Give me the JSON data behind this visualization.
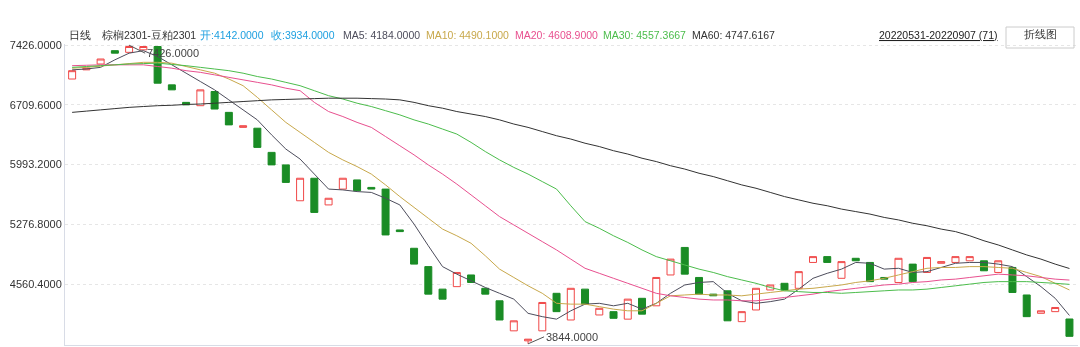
{
  "chart_data": {
    "type": "candlestick",
    "title": "日线",
    "subtitle": "棕榈2301-豆粕2301",
    "annotations": [
      "开:4142.0000",
      "收:3934.0000",
      "20220531-20220907 (71)",
      "折线图",
      "7426.0000",
      "3844.0000"
    ],
    "categories": [
      null,
      null,
      null,
      null,
      null,
      null,
      null,
      null,
      null,
      null,
      null,
      null,
      null,
      null,
      null,
      null,
      null,
      null,
      null,
      null,
      null,
      null,
      null,
      null,
      null,
      null,
      null,
      null,
      null,
      null,
      null,
      null,
      null,
      null,
      null,
      null,
      null,
      null,
      null,
      null,
      null,
      null,
      null,
      null,
      null,
      null,
      null,
      null,
      null,
      null,
      null,
      null,
      null,
      null,
      null,
      null,
      null,
      null,
      null,
      null,
      null,
      null,
      null,
      null,
      null,
      null,
      null,
      null,
      null,
      null,
      null
    ],
    "ylim": [
      3830,
      7440
    ],
    "yticks": [
      {
        "value": 4560.4,
        "label": "4560.4000"
      },
      {
        "value": 5276.8,
        "label": "5276.8000"
      },
      {
        "value": 5993.2,
        "label": "5993.2000"
      },
      {
        "value": 6709.6,
        "label": "6709.6000"
      },
      {
        "value": 7426,
        "label": "7426.0000"
      }
    ],
    "tick_labels": "y",
    "grid": "y",
    "series": [
      {
        "colors": [
          "#f04848",
          "#f04848",
          "#f04848",
          "#1a8c25",
          "#f04848",
          "#f04848",
          "#1a8c25",
          "#1a8c25",
          "#1a8c25",
          "#f04848",
          "#1a8c25",
          "#1a8c25",
          "#f04848",
          "#1a8c25",
          "#1a8c25",
          "#1a8c25",
          "#f04848",
          "#1a8c25",
          "#f04848",
          "#f04848",
          "#1a8c25",
          "#1a8c25",
          "#1a8c25",
          "#1a8c25",
          "#1a8c25",
          "#1a8c25",
          "#1a8c25",
          "#f04848",
          "#1a8c25",
          "#1a8c25",
          "#1a8c25",
          "#f04848",
          "#f04848",
          "#f04848",
          "#1a8c25",
          "#f04848",
          "#1a8c25",
          "#f04848",
          "#1a8c25",
          "#f04848",
          "#1a8c25",
          "#f04848",
          "#f04848",
          "#1a8c25",
          "#1a8c25",
          "#1a8c25",
          "#1a8c25",
          "#f04848",
          "#f04848",
          "#f04848",
          "#1a8c25",
          "#f04848",
          "#f04848",
          "#1a8c25",
          "#f04848",
          "#1a8c25",
          "#1a8c25",
          "#1a8c25",
          "#f04848",
          "#1a8c25",
          "#f04848",
          "#f04848",
          "#f04848",
          "#f04848",
          "#1a8c25",
          "#f04848",
          "#1a8c25",
          "#1a8c25",
          "#f04848",
          "#f04848",
          "#1a8c25"
        ],
        "ohlc": [
          [
            7020,
            7120,
            7020,
            7120
          ],
          [
            7130,
            7150,
            7130,
            7150
          ],
          [
            7200,
            7260,
            7200,
            7260
          ],
          [
            7360,
            7360,
            7330,
            7330
          ],
          [
            7340,
            7426,
            7340,
            7410
          ],
          [
            7370,
            7410,
            7370,
            7410
          ],
          [
            7410,
            7410,
            6970,
            6970
          ],
          [
            6950,
            6950,
            6890,
            6890
          ],
          [
            6740,
            6740,
            6710,
            6710
          ],
          [
            6700,
            6890,
            6700,
            6890
          ],
          [
            6870,
            6870,
            6660,
            6660
          ],
          [
            6620,
            6620,
            6470,
            6470
          ],
          [
            6440,
            6460,
            6440,
            6460
          ],
          [
            6430,
            6430,
            6200,
            6200
          ],
          [
            6140,
            6140,
            5990,
            5990
          ],
          [
            5990,
            5990,
            5780,
            5780
          ],
          [
            5560,
            5830,
            5560,
            5830
          ],
          [
            5830,
            5830,
            5420,
            5420
          ],
          [
            5510,
            5590,
            5510,
            5590
          ],
          [
            5700,
            5830,
            5700,
            5830
          ],
          [
            5810,
            5810,
            5680,
            5680
          ],
          [
            5720,
            5720,
            5700,
            5700
          ],
          [
            5700,
            5700,
            5150,
            5150
          ],
          [
            5210,
            5210,
            5190,
            5190
          ],
          [
            4990,
            4990,
            4800,
            4800
          ],
          [
            4770,
            4770,
            4440,
            4440
          ],
          [
            4500,
            4500,
            4380,
            4380
          ],
          [
            4530,
            4700,
            4530,
            4700
          ],
          [
            4670,
            4670,
            4580,
            4580
          ],
          [
            4510,
            4510,
            4440,
            4440
          ],
          [
            4360,
            4360,
            4130,
            4130
          ],
          [
            4000,
            4120,
            4000,
            4120
          ],
          [
            3880,
            3900,
            3844,
            3900
          ],
          [
            4000,
            4340,
            4000,
            4340
          ],
          [
            4450,
            4450,
            4230,
            4230
          ],
          [
            4130,
            4510,
            4130,
            4510
          ],
          [
            4500,
            4500,
            4320,
            4320
          ],
          [
            4190,
            4270,
            4190,
            4270
          ],
          [
            4230,
            4230,
            4150,
            4150
          ],
          [
            4140,
            4380,
            4140,
            4380
          ],
          [
            4390,
            4390,
            4200,
            4200
          ],
          [
            4300,
            4640,
            4300,
            4640
          ],
          [
            4670,
            4860,
            4670,
            4860
          ],
          [
            5000,
            5000,
            4680,
            4680
          ],
          [
            4640,
            4640,
            4440,
            4440
          ],
          [
            4440,
            4440,
            4420,
            4420
          ],
          [
            4480,
            4480,
            4120,
            4120
          ],
          [
            4110,
            4230,
            4110,
            4230
          ],
          [
            4250,
            4510,
            4250,
            4510
          ],
          [
            4490,
            4550,
            4490,
            4550
          ],
          [
            4570,
            4570,
            4490,
            4490
          ],
          [
            4510,
            4710,
            4510,
            4710
          ],
          [
            4820,
            4890,
            4820,
            4890
          ],
          [
            4890,
            4890,
            4820,
            4820
          ],
          [
            4630,
            4830,
            4630,
            4830
          ],
          [
            4870,
            4870,
            4840,
            4840
          ],
          [
            4820,
            4820,
            4590,
            4590
          ],
          [
            4640,
            4640,
            4620,
            4620
          ],
          [
            4580,
            4870,
            4580,
            4870
          ],
          [
            4800,
            4800,
            4590,
            4590
          ],
          [
            4700,
            4880,
            4700,
            4880
          ],
          [
            4810,
            4830,
            4810,
            4830
          ],
          [
            4820,
            4890,
            4820,
            4890
          ],
          [
            4840,
            4890,
            4840,
            4890
          ],
          [
            4840,
            4840,
            4720,
            4720
          ],
          [
            4700,
            4840,
            4700,
            4840
          ],
          [
            4760,
            4760,
            4460,
            4460
          ],
          [
            4430,
            4430,
            4170,
            4170
          ],
          [
            4210,
            4240,
            4210,
            4240
          ],
          [
            4230,
            4280,
            4230,
            4280
          ],
          [
            4142,
            4142,
            3934,
            3934
          ]
        ]
      },
      {
        "type": "line",
        "name": "MA5: 4184.0000",
        "color": "#4d4d5c",
        "values": [
          7130,
          7140,
          7160,
          7250,
          7330,
          7360,
          7290,
          7190,
          7090,
          6990,
          6890,
          6770,
          6650,
          6530,
          6350,
          6180,
          6060,
          5880,
          5700,
          5690,
          5670,
          5660,
          5590,
          5510,
          5280,
          5020,
          4770,
          4680,
          4600,
          4520,
          4450,
          4380,
          4210,
          4170,
          4140,
          4240,
          4320,
          4330,
          4300,
          4330,
          4260,
          4330,
          4450,
          4550,
          4580,
          4590,
          4450,
          4360,
          4330,
          4350,
          4380,
          4500,
          4630,
          4690,
          4740,
          4820,
          4810,
          4740,
          4750,
          4700,
          4710,
          4760,
          4810,
          4820,
          4820,
          4800,
          4770,
          4650,
          4530,
          4390,
          4184
        ]
      },
      {
        "type": "line",
        "name": "MA10: 4490.1000",
        "color": "#c8a84b",
        "values": [
          7150,
          7160,
          7175,
          7190,
          7205,
          7220,
          7220,
          7210,
          7170,
          7130,
          7090,
          7020,
          6940,
          6800,
          6650,
          6500,
          6380,
          6260,
          6140,
          6050,
          5970,
          5880,
          5750,
          5610,
          5480,
          5350,
          5220,
          5140,
          5050,
          4900,
          4740,
          4640,
          4540,
          4450,
          4330,
          4320,
          4320,
          4290,
          4260,
          4240,
          4240,
          4330,
          4420,
          4430,
          4440,
          4430,
          4430,
          4420,
          4440,
          4460,
          4480,
          4500,
          4510,
          4530,
          4550,
          4580,
          4600,
          4630,
          4670,
          4710,
          4750,
          4760,
          4760,
          4770,
          4770,
          4760,
          4750,
          4700,
          4650,
          4570,
          4490.1
        ]
      },
      {
        "type": "line",
        "name": "MA20: 4608.9000",
        "color": "#e8508f",
        "values": [
          7180,
          7185,
          7190,
          7190,
          7190,
          7190,
          7170,
          7150,
          7120,
          7100,
          7070,
          7040,
          7010,
          6980,
          6950,
          6910,
          6880,
          6740,
          6630,
          6570,
          6500,
          6440,
          6330,
          6220,
          6110,
          5990,
          5880,
          5760,
          5630,
          5500,
          5370,
          5270,
          5170,
          5070,
          4970,
          4860,
          4750,
          4690,
          4630,
          4570,
          4510,
          4450,
          4420,
          4400,
          4380,
          4370,
          4370,
          4360,
          4360,
          4380,
          4400,
          4420,
          4440,
          4470,
          4490,
          4510,
          4530,
          4550,
          4560,
          4580,
          4590,
          4610,
          4620,
          4640,
          4660,
          4680,
          4670,
          4660,
          4640,
          4620,
          4608.9
        ]
      },
      {
        "type": "line",
        "name": "MA30: 4557.3667",
        "color": "#4cbd4c",
        "values": [
          7160,
          7170,
          7180,
          7190,
          7200,
          7205,
          7210,
          7195,
          7180,
          7160,
          7140,
          7120,
          7090,
          7050,
          7020,
          6980,
          6940,
          6880,
          6820,
          6780,
          6730,
          6690,
          6640,
          6590,
          6530,
          6480,
          6420,
          6360,
          6260,
          6150,
          6050,
          5960,
          5880,
          5790,
          5700,
          5500,
          5310,
          5230,
          5140,
          5060,
          4970,
          4890,
          4840,
          4790,
          4740,
          4700,
          4650,
          4610,
          4570,
          4520,
          4480,
          4470,
          4460,
          4460,
          4450,
          4460,
          4470,
          4480,
          4490,
          4490,
          4500,
          4520,
          4540,
          4560,
          4580,
          4590,
          4590,
          4590,
          4580,
          4570,
          4557.3667
        ]
      },
      {
        "type": "line",
        "name": "MA60: 4747.6167",
        "color": "#333333",
        "values": [
          6620,
          6635,
          6650,
          6665,
          6680,
          6690,
          6700,
          6705,
          6715,
          6720,
          6730,
          6740,
          6750,
          6760,
          6770,
          6775,
          6780,
          6785,
          6790,
          6790,
          6790,
          6785,
          6780,
          6770,
          6740,
          6700,
          6670,
          6630,
          6600,
          6570,
          6530,
          6480,
          6440,
          6390,
          6340,
          6300,
          6250,
          6210,
          6160,
          6120,
          6070,
          6030,
          5980,
          5940,
          5890,
          5850,
          5800,
          5750,
          5710,
          5660,
          5610,
          5570,
          5530,
          5500,
          5460,
          5430,
          5400,
          5360,
          5330,
          5290,
          5260,
          5220,
          5190,
          5140,
          5080,
          5030,
          4970,
          4910,
          4860,
          4800,
          4747.6167
        ]
      }
    ]
  }
}
